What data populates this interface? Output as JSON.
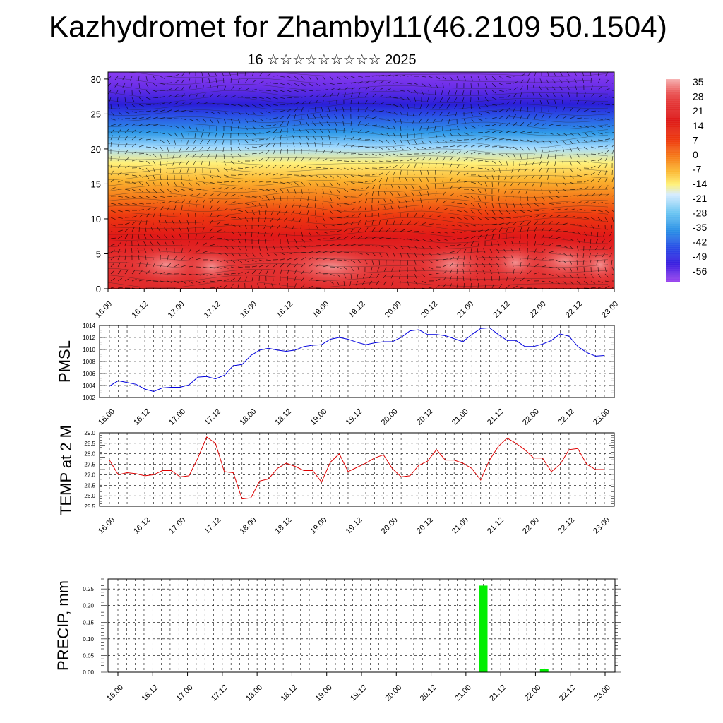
{
  "header": {
    "title": "Kazhydromet for Zhambyl11(46.2109 50.1504)",
    "subtitle": "16 ☆☆☆☆☆☆☆☆☆ 2025"
  },
  "time_labels": [
    "16.00",
    "16.12",
    "17.00",
    "17.12",
    "18.00",
    "18.12",
    "19.00",
    "19.12",
    "20.00",
    "20.12",
    "21.00",
    "21.12",
    "22.00",
    "22.12",
    "23.00"
  ],
  "colorbar": {
    "labels": [
      "35",
      "28",
      "21",
      "14",
      "7",
      "0",
      "-7",
      "-14",
      "-21",
      "-28",
      "-35",
      "-42",
      "-49",
      "-56"
    ],
    "colors": [
      "#f4a9a9",
      "#e84848",
      "#dd1a1a",
      "#ee3a10",
      "#f46e17",
      "#f99a2a",
      "#fcc63a",
      "#fff176",
      "#c5e6ff",
      "#6cc6f2",
      "#2a8fe6",
      "#2a4fe6",
      "#3a1fe0",
      "#6a2ee8",
      "#9b46ee"
    ]
  },
  "chart_data": [
    {
      "type": "heatmap",
      "title": "",
      "ylabel": "",
      "ylim": [
        0,
        31
      ],
      "y_ticks": [
        0,
        5,
        10,
        15,
        20,
        25,
        30
      ],
      "x_ticks": [
        "16.00",
        "16.12",
        "17.00",
        "17.12",
        "18.00",
        "18.12",
        "19.00",
        "19.12",
        "20.00",
        "20.12",
        "21.00",
        "21.12",
        "22.00",
        "22.12",
        "23.00"
      ],
      "value_range": [
        -56,
        35
      ],
      "overlay": "wind barbs"
    },
    {
      "type": "line",
      "ylabel": "PMSL",
      "ylim": [
        1002,
        1014
      ],
      "y_ticks": [
        1002,
        1004,
        1006,
        1008,
        1010,
        1012,
        1014
      ],
      "color": "#0000dd",
      "x_hours": [
        0,
        3,
        6,
        9,
        12,
        15,
        18,
        21,
        24,
        27,
        30,
        33,
        36,
        39,
        42,
        45,
        48,
        51,
        54,
        57,
        60,
        63,
        66,
        69,
        72,
        75,
        78,
        81,
        84,
        87,
        90,
        93,
        96,
        99,
        102,
        105,
        108,
        111,
        114,
        117,
        120,
        123,
        126,
        129,
        132,
        135,
        138,
        141,
        144,
        147,
        150,
        153,
        156,
        159,
        162,
        165,
        168
      ],
      "values": [
        1003.9,
        1004.8,
        1004.5,
        1004.2,
        1003.4,
        1003.0,
        1003.6,
        1003.7,
        1003.7,
        1004.1,
        1005.4,
        1005.5,
        1005.1,
        1005.7,
        1007.3,
        1007.5,
        1009.0,
        1009.9,
        1010.2,
        1009.9,
        1009.7,
        1009.9,
        1010.5,
        1010.7,
        1010.8,
        1011.7,
        1012.0,
        1011.7,
        1011.2,
        1010.8,
        1011.1,
        1011.3,
        1011.3,
        1012.0,
        1013.1,
        1013.3,
        1012.5,
        1012.5,
        1012.3,
        1011.8,
        1011.3,
        1012.5,
        1013.5,
        1013.6,
        1012.5,
        1011.5,
        1011.5,
        1010.5,
        1010.5,
        1010.9,
        1011.5,
        1012.6,
        1012.2,
        1010.5,
        1009.5,
        1008.9,
        1009.0
      ]
    },
    {
      "type": "line",
      "ylabel": "TEMP at 2 M",
      "ylim": [
        25.5,
        29.0
      ],
      "y_ticks": [
        25.5,
        26.0,
        26.5,
        27.0,
        27.5,
        28.0,
        28.5,
        29.0
      ],
      "color": "#dd0000",
      "x_hours": [
        0,
        3,
        6,
        9,
        12,
        15,
        18,
        21,
        24,
        27,
        30,
        33,
        36,
        39,
        42,
        45,
        48,
        51,
        54,
        57,
        60,
        63,
        66,
        69,
        72,
        75,
        78,
        81,
        84,
        87,
        90,
        93,
        96,
        99,
        102,
        105,
        108,
        111,
        114,
        117,
        120,
        123,
        126,
        129,
        132,
        135,
        138,
        141,
        144,
        147,
        150,
        153,
        156,
        159,
        162,
        165,
        168
      ],
      "values": [
        27.7,
        27.0,
        27.1,
        27.05,
        26.95,
        27.0,
        27.2,
        27.2,
        26.9,
        26.95,
        27.8,
        28.8,
        28.5,
        27.15,
        27.1,
        25.85,
        25.9,
        26.7,
        26.8,
        27.3,
        27.55,
        27.4,
        27.2,
        27.2,
        26.65,
        27.6,
        28.0,
        27.15,
        27.35,
        27.55,
        27.8,
        27.95,
        27.3,
        26.9,
        26.95,
        27.45,
        27.65,
        28.2,
        27.7,
        27.7,
        27.55,
        27.3,
        26.75,
        27.7,
        28.35,
        28.75,
        28.5,
        28.2,
        27.8,
        27.8,
        27.15,
        27.5,
        28.2,
        28.25,
        27.5,
        27.25,
        27.25
      ]
    },
    {
      "type": "bar",
      "ylabel": "PRECIP, mm",
      "ylim": [
        0,
        0.28
      ],
      "y_ticks": [
        "0.00",
        "0.05",
        "0.10",
        "0.15",
        "0.20",
        "0.25"
      ],
      "color": "#00ee00",
      "bars": [
        {
          "x_hours": 126,
          "value": 0.26
        },
        {
          "x_hours": 147,
          "value": 0.01
        }
      ]
    }
  ]
}
